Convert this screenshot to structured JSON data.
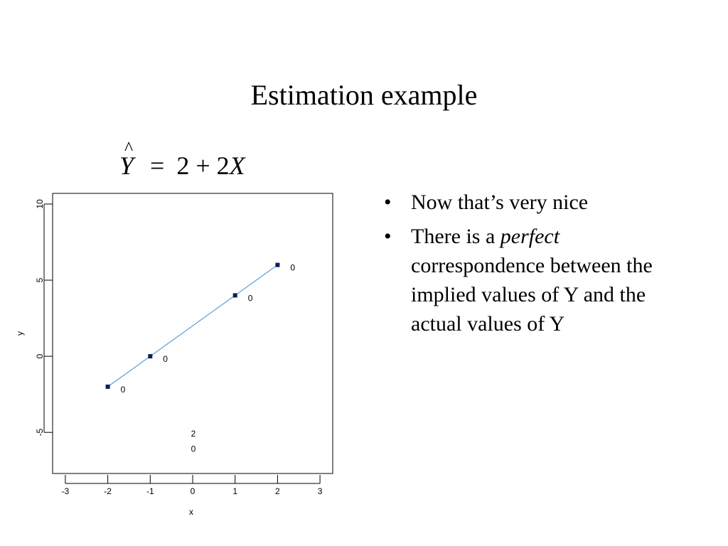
{
  "slide": {
    "title": "Estimation example",
    "equation": {
      "lhs_var": "Y",
      "hat": "^",
      "equals": "=",
      "intercept": "2",
      "plus": "+",
      "slope": "2",
      "rhs_var": "X"
    },
    "bullets": [
      {
        "dot": "•",
        "parts": [
          {
            "text": "Now that’s very nice",
            "italic": false
          }
        ]
      },
      {
        "dot": "•",
        "parts": [
          {
            "text": "There is a ",
            "italic": false
          },
          {
            "text": "perfect",
            "italic": true
          },
          {
            "text": " correspondence between the implied values of Y and the actual values of Y",
            "italic": false
          }
        ]
      }
    ]
  },
  "chart_data": {
    "type": "scatter",
    "xlabel": "x",
    "ylabel": "y",
    "xlim": [
      -3.3,
      3.3
    ],
    "ylim": [
      -7.7,
      10.7
    ],
    "x_ticks": [
      -3,
      -2,
      -1,
      0,
      1,
      2,
      3
    ],
    "x_tick_labels": [
      "-3",
      "-2",
      "-1",
      "0",
      "1",
      "2",
      "3"
    ],
    "y_ticks": [
      -5,
      0,
      5,
      10
    ],
    "y_tick_labels": [
      "-5",
      "0",
      "5",
      "10"
    ],
    "points": [
      {
        "x": -2,
        "y": -2,
        "label": "0"
      },
      {
        "x": -1,
        "y": 0,
        "label": "0"
      },
      {
        "x": 1,
        "y": 4,
        "label": "0"
      },
      {
        "x": 2,
        "y": 6,
        "label": "0"
      }
    ],
    "fit_line": {
      "x": [
        -2,
        2
      ],
      "y": [
        -2,
        6
      ],
      "color": "#3a8fd9"
    },
    "point_color": "#0b1f5c",
    "annotations": [
      {
        "x": 0,
        "y": -5,
        "text": "2"
      },
      {
        "x": 0,
        "y": -6,
        "text": "0"
      }
    ],
    "grid": false
  }
}
